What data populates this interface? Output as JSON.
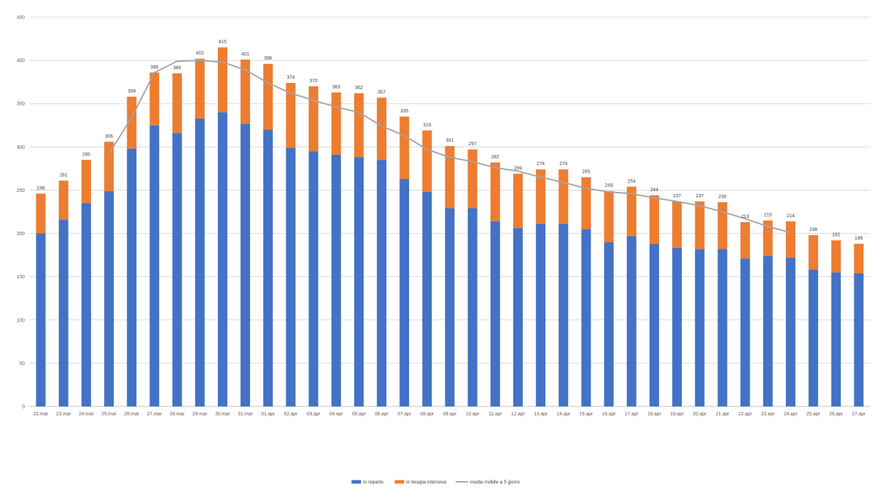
{
  "chart_data": {
    "type": "bar",
    "stacked": true,
    "ylim": [
      0,
      450
    ],
    "ytick_step": 50,
    "grid": true,
    "legend_position": "bottom",
    "categories": [
      "22.mar",
      "23.mar",
      "24.mar",
      "25.mar",
      "26.mar",
      "27.mar",
      "28.mar",
      "29.mar",
      "30.mar",
      "31.mar",
      "01.apr",
      "02.apr",
      "03.apr",
      "04.apr",
      "05.apr",
      "06.apr",
      "07.apr",
      "08.apr",
      "09.apr",
      "10.apr",
      "11.apr",
      "12.apr",
      "13.apr",
      "14.apr",
      "15.apr",
      "16.apr",
      "17.apr",
      "18.apr",
      "19.apr",
      "20.apr",
      "21.apr",
      "22.apr",
      "23.apr",
      "24.apr",
      "25.apr",
      "26.apr",
      "27.apr"
    ],
    "series": [
      {
        "name": "in reparto",
        "color": "#4472c4",
        "kind": "bar",
        "values": [
          200,
          216,
          235,
          249,
          298,
          325,
          316,
          333,
          340,
          327,
          320,
          299,
          295,
          291,
          288,
          285,
          263,
          248,
          229,
          229,
          214,
          206,
          211,
          211,
          205,
          190,
          197,
          188,
          183,
          182,
          182,
          171,
          174,
          172,
          158,
          155,
          154
        ]
      },
      {
        "name": "in terapia intensiva",
        "color": "#ed7d31",
        "kind": "bar",
        "values": [
          46,
          45,
          50,
          57,
          60,
          61,
          69,
          69,
          75,
          74,
          76,
          75,
          75,
          72,
          74,
          72,
          72,
          71,
          72,
          68,
          68,
          63,
          63,
          63,
          60,
          59,
          57,
          56,
          54,
          55,
          54,
          42,
          41,
          42,
          40,
          37,
          34
        ]
      },
      {
        "name": "media mobile a 5 giorni",
        "color": "#a5a5a5",
        "kind": "line",
        "values": [
          null,
          null,
          null,
          292,
          334,
          386,
          399,
          400,
          398,
          389,
          374,
          362,
          354,
          346,
          340,
          324,
          313,
          297,
          288,
          283,
          276,
          272,
          265,
          259,
          252,
          248,
          246,
          241,
          237,
          232,
          225,
          217,
          208,
          201,
          null,
          null,
          null
        ]
      }
    ],
    "totals": [
      246,
      261,
      285,
      306,
      358,
      386,
      385,
      402,
      415,
      401,
      396,
      374,
      370,
      363,
      362,
      357,
      335,
      319,
      301,
      297,
      282,
      269,
      274,
      274,
      265,
      249,
      254,
      244,
      237,
      237,
      236,
      213,
      215,
      214,
      198,
      192,
      188
    ]
  }
}
